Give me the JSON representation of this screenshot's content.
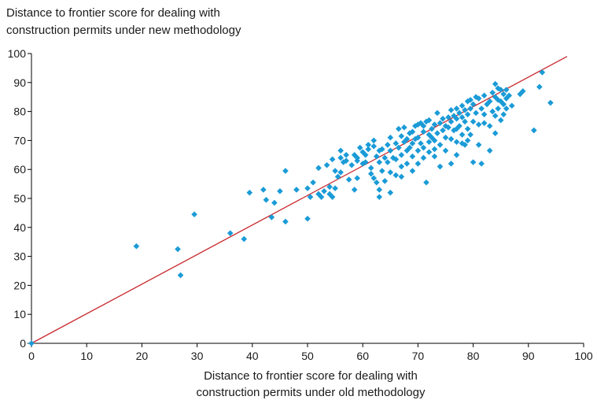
{
  "chart_data": {
    "type": "scatter",
    "title": "",
    "ylabel_lines": [
      "Distance to frontier score for dealing with",
      "construction permits under new methodology"
    ],
    "xlabel_lines": [
      "Distance to frontier score for dealing with",
      "construction permits under old methodology"
    ],
    "xlim": [
      0,
      100
    ],
    "ylim": [
      0,
      100
    ],
    "xticks": [
      0,
      10,
      20,
      30,
      40,
      50,
      60,
      70,
      80,
      90,
      100
    ],
    "yticks": [
      0,
      10,
      20,
      30,
      40,
      50,
      60,
      70,
      80,
      90,
      100
    ],
    "grid": false,
    "legend": "none",
    "colors": {
      "points": "#1a9bd7",
      "line": "#c8282d",
      "axis": "#000000"
    },
    "reference_line": {
      "from": [
        0,
        0
      ],
      "to": [
        97,
        99
      ]
    },
    "points": [
      [
        0,
        0
      ],
      [
        19,
        33.5
      ],
      [
        26.5,
        32.5
      ],
      [
        27,
        23.5
      ],
      [
        29.5,
        44.5
      ],
      [
        36,
        38
      ],
      [
        38.5,
        36
      ],
      [
        39.5,
        52
      ],
      [
        42,
        53
      ],
      [
        42.5,
        49.5
      ],
      [
        43.5,
        43.5
      ],
      [
        44,
        48.5
      ],
      [
        45,
        52.5
      ],
      [
        46,
        59.5
      ],
      [
        46,
        42
      ],
      [
        48,
        53
      ],
      [
        50,
        53.5
      ],
      [
        50,
        43
      ],
      [
        50.5,
        50.5
      ],
      [
        51,
        55.5
      ],
      [
        52,
        51.5
      ],
      [
        52,
        60.5
      ],
      [
        52.5,
        50.5
      ],
      [
        53,
        52.5
      ],
      [
        53.5,
        61.5
      ],
      [
        54,
        51.5
      ],
      [
        54,
        54
      ],
      [
        54.5,
        63.5
      ],
      [
        54.5,
        50.5
      ],
      [
        55,
        53.5
      ],
      [
        55,
        59.5
      ],
      [
        55.5,
        57.5
      ],
      [
        56,
        64
      ],
      [
        56,
        66.5
      ],
      [
        56,
        59
      ],
      [
        56.5,
        62.5
      ],
      [
        57,
        65
      ],
      [
        57,
        63
      ],
      [
        57.5,
        56.5
      ],
      [
        58,
        61.5
      ],
      [
        58.5,
        65
      ],
      [
        58.5,
        53
      ],
      [
        59,
        64
      ],
      [
        59,
        63
      ],
      [
        59,
        57
      ],
      [
        59.5,
        67.5
      ],
      [
        60,
        62
      ],
      [
        60,
        66
      ],
      [
        60.5,
        65
      ],
      [
        60.5,
        62.5
      ],
      [
        61,
        68.5
      ],
      [
        61,
        67
      ],
      [
        61.5,
        60.5
      ],
      [
        61.5,
        58.5
      ],
      [
        62,
        70
      ],
      [
        62,
        68
      ],
      [
        62,
        57
      ],
      [
        62.5,
        64.5
      ],
      [
        62.5,
        55.5
      ],
      [
        63,
        66.5
      ],
      [
        63,
        62.5
      ],
      [
        63,
        53
      ],
      [
        63,
        50.5
      ],
      [
        63.5,
        67
      ],
      [
        63.5,
        59.5
      ],
      [
        64,
        64
      ],
      [
        64,
        56
      ],
      [
        64.5,
        68.5
      ],
      [
        64.5,
        62.5
      ],
      [
        65,
        71
      ],
      [
        65,
        66.5
      ],
      [
        65,
        59
      ],
      [
        65,
        52
      ],
      [
        65.5,
        64
      ],
      [
        66,
        69
      ],
      [
        66,
        63.5
      ],
      [
        66,
        58
      ],
      [
        66.5,
        67.5
      ],
      [
        66.5,
        74
      ],
      [
        67,
        71.5
      ],
      [
        67,
        65
      ],
      [
        67,
        61
      ],
      [
        67,
        57.5
      ],
      [
        67.5,
        69.5
      ],
      [
        67.5,
        74.5
      ],
      [
        68,
        70.5
      ],
      [
        68,
        66.5
      ],
      [
        68,
        62
      ],
      [
        68.5,
        67.5
      ],
      [
        68.5,
        72.5
      ],
      [
        69,
        73
      ],
      [
        69,
        69
      ],
      [
        69,
        64.5
      ],
      [
        69,
        59.5
      ],
      [
        69.5,
        75
      ],
      [
        69.5,
        70.5
      ],
      [
        70,
        75.5
      ],
      [
        70,
        71
      ],
      [
        70,
        66.5
      ],
      [
        70,
        62
      ],
      [
        70.5,
        76
      ],
      [
        70.5,
        69
      ],
      [
        71,
        73
      ],
      [
        71,
        67.5
      ],
      [
        71,
        75
      ],
      [
        71,
        64
      ],
      [
        71.5,
        55.5
      ],
      [
        71.5,
        76.5
      ],
      [
        72,
        77
      ],
      [
        72,
        72
      ],
      [
        72,
        69.5
      ],
      [
        72,
        66
      ],
      [
        72.5,
        74
      ],
      [
        72.5,
        71
      ],
      [
        73,
        75.5
      ],
      [
        73,
        70
      ],
      [
        73,
        67
      ],
      [
        73,
        64.5
      ],
      [
        73.5,
        79.5
      ],
      [
        73.5,
        72.5
      ],
      [
        74,
        76
      ],
      [
        74,
        68.5
      ],
      [
        74,
        61
      ],
      [
        74.5,
        77.5
      ],
      [
        74.5,
        73.5
      ],
      [
        75,
        75
      ],
      [
        75,
        71
      ],
      [
        75,
        66.5
      ],
      [
        75.5,
        78
      ],
      [
        75.5,
        74.5
      ],
      [
        76,
        80.5
      ],
      [
        76,
        76.5
      ],
      [
        76,
        70.5
      ],
      [
        76,
        62
      ],
      [
        76.5,
        78.5
      ],
      [
        76.5,
        73.5
      ],
      [
        77,
        81
      ],
      [
        77,
        77.5
      ],
      [
        77,
        74
      ],
      [
        77,
        69.5
      ],
      [
        77,
        65
      ],
      [
        77.5,
        79.5
      ],
      [
        77.5,
        75
      ],
      [
        78,
        82
      ],
      [
        78,
        78
      ],
      [
        78,
        72
      ],
      [
        78,
        69
      ],
      [
        78.5,
        80.5
      ],
      [
        78.5,
        76.5
      ],
      [
        78.5,
        68.5
      ],
      [
        79,
        83.5
      ],
      [
        79,
        79
      ],
      [
        79,
        74
      ],
      [
        79,
        70
      ],
      [
        79.5,
        84
      ],
      [
        79.5,
        81
      ],
      [
        79.5,
        72
      ],
      [
        80,
        82.5
      ],
      [
        80,
        76.5
      ],
      [
        80,
        62.5
      ],
      [
        80.5,
        85
      ],
      [
        80.5,
        79.5
      ],
      [
        81,
        84.5
      ],
      [
        81,
        75.5
      ],
      [
        81,
        68.5
      ],
      [
        81.5,
        81
      ],
      [
        81.5,
        62
      ],
      [
        82,
        85.5
      ],
      [
        82,
        79
      ],
      [
        82,
        76
      ],
      [
        82.5,
        82.5
      ],
      [
        83,
        83.5
      ],
      [
        83,
        75
      ],
      [
        83,
        66.5
      ],
      [
        83.5,
        86.5
      ],
      [
        83.5,
        80
      ],
      [
        84,
        89.5
      ],
      [
        84,
        85
      ],
      [
        84,
        78.5
      ],
      [
        84,
        72.5
      ],
      [
        84.5,
        88
      ],
      [
        84.5,
        84
      ],
      [
        84.5,
        81
      ],
      [
        85,
        87.5
      ],
      [
        85,
        83.5
      ],
      [
        85,
        77
      ],
      [
        85.5,
        86
      ],
      [
        85.5,
        82.5
      ],
      [
        85.5,
        79
      ],
      [
        86,
        87.5
      ],
      [
        86,
        84.5
      ],
      [
        86,
        81
      ],
      [
        86.5,
        85.5
      ],
      [
        87,
        82
      ],
      [
        88.5,
        86
      ],
      [
        89,
        87
      ],
      [
        91,
        73.5
      ],
      [
        92,
        88.5
      ],
      [
        92.5,
        93.5
      ],
      [
        94,
        83
      ]
    ]
  }
}
